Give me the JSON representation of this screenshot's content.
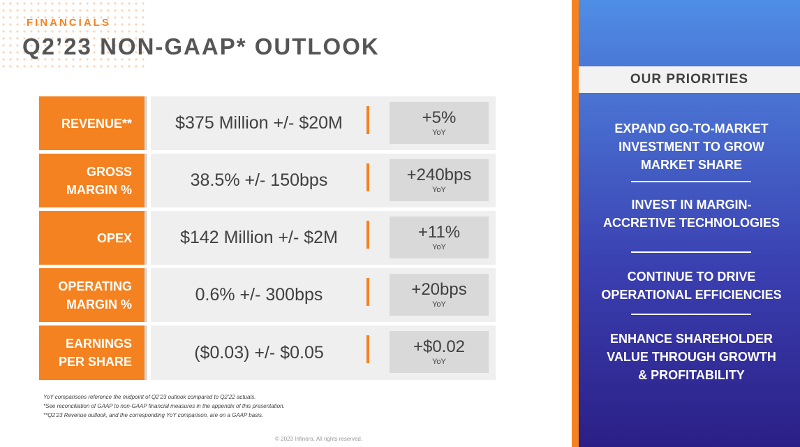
{
  "header": {
    "eyebrow": "FINANCIALS",
    "title": "Q2’23 NON-GAAP* OUTLOOK"
  },
  "rows": [
    {
      "label_lines": [
        "REVENUE**"
      ],
      "value": "$375 Million +/- $20M",
      "yoy": "+5%",
      "yoy_label": "YoY"
    },
    {
      "label_lines": [
        "GROSS",
        "MARGIN %"
      ],
      "value": "38.5% +/- 150bps",
      "yoy": "+240bps",
      "yoy_label": "YoY"
    },
    {
      "label_lines": [
        "OPEX"
      ],
      "value": "$142 Million +/- $2M",
      "yoy": "+11%",
      "yoy_label": "YoY"
    },
    {
      "label_lines": [
        "OPERATING",
        "MARGIN %"
      ],
      "value": "0.6% +/- 300bps",
      "yoy": "+20bps",
      "yoy_label": "YoY"
    },
    {
      "label_lines": [
        "EARNINGS",
        "PER SHARE"
      ],
      "value": "($0.03) +/- $0.05",
      "yoy": "+$0.02",
      "yoy_label": "YoY"
    }
  ],
  "footnotes": [
    "YoY comparisons reference the midpoint of Q2’23 outlook compared to Q2’22 actuals.",
    "*See reconciliation of GAAP to non-GAAP financial measures in the appendix of this presentation.",
    "**Q2’23 Revenue outlook, and the corresponding YoY comparison, are on a GAAP basis."
  ],
  "copyright": "© 2023 Infinera.  All rights reserved.",
  "priorities": {
    "heading": "OUR PRIORITIES",
    "items": [
      {
        "lines": [
          "EXPAND GO-TO-MARKET",
          "INVESTMENT TO GROW",
          "MARKET SHARE"
        ]
      },
      {
        "lines": [
          "INVEST IN MARGIN-",
          "ACCRETIVE TECHNOLOGIES"
        ]
      },
      {
        "lines": [
          "CONTINUE TO DRIVE",
          "OPERATIONAL EFFICIENCIES"
        ]
      },
      {
        "lines": [
          "ENHANCE SHAREHOLDER",
          "VALUE THROUGH GROWTH",
          "& PROFITABILITY"
        ]
      }
    ]
  },
  "colors": {
    "accent": "#f58220",
    "panel_dark": "#2b1f86",
    "panel_light": "#4f8ee6"
  }
}
